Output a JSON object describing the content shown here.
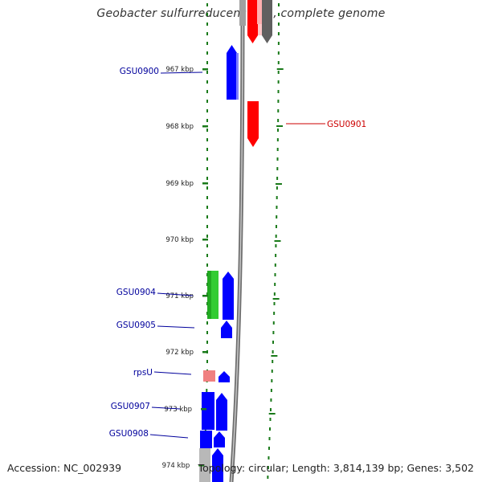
{
  "title": "Geobacter sulfurreducens PCA, complete genome",
  "footer": {
    "accession": "Accession: NC_002939",
    "summary": "Topology: circular; Length: 3,814,139 bp; Genes: 3,502"
  },
  "axis_ticks": [
    "967 kbp",
    "968 kbp",
    "969 kbp",
    "970 kbp",
    "971 kbp",
    "972 kbp",
    "973 kbp",
    "974 kbp"
  ],
  "gene_labels": [
    {
      "name": "GSU0900",
      "color": "#00009c"
    },
    {
      "name": "GSU0901",
      "color": "#cc0000"
    },
    {
      "name": "GSU0904",
      "color": "#00009c"
    },
    {
      "name": "GSU0905",
      "color": "#00009c"
    },
    {
      "name": "rpsU",
      "color": "#00009c"
    },
    {
      "name": "GSU0907",
      "color": "#00009c"
    },
    {
      "name": "GSU0908",
      "color": "#00009c"
    }
  ],
  "colors": {
    "forward_cds": "#0000ff",
    "reverse_cds": "#ff0000",
    "rna": "#33cc33",
    "rrna_pale": "#f08080",
    "tick": "#1a7a1a",
    "backbone": "#7a7a7a"
  }
}
